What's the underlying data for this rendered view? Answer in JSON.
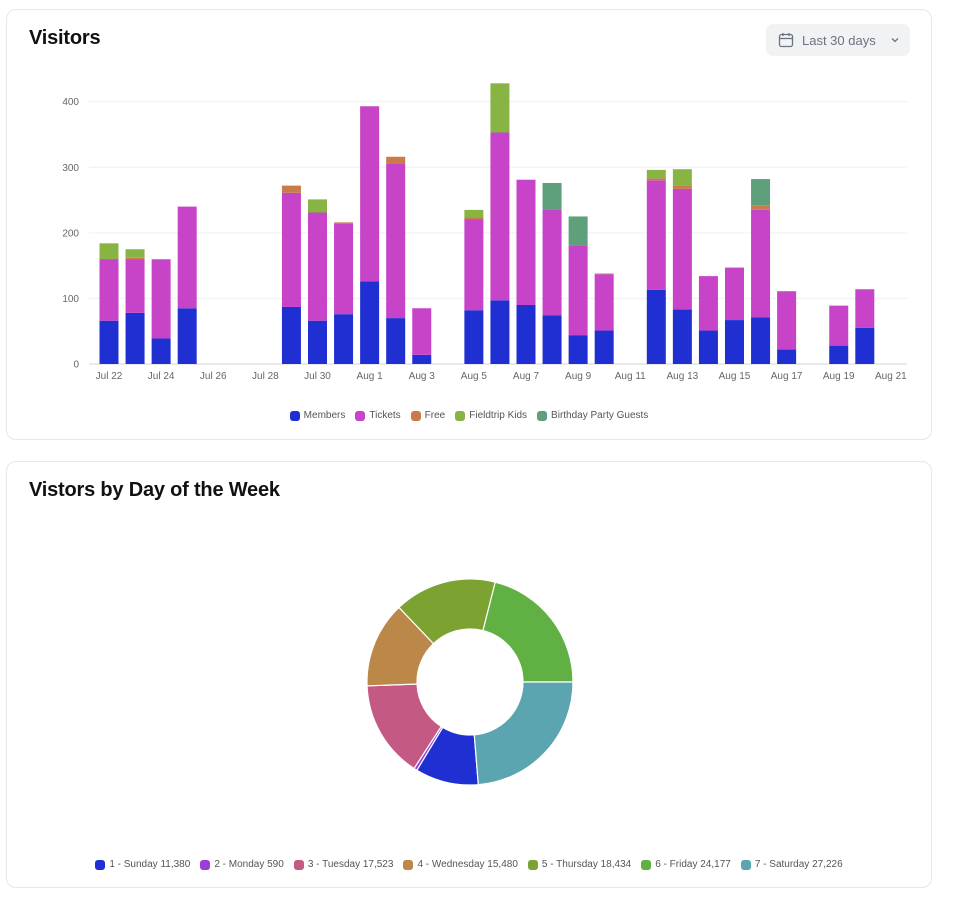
{
  "visitors_card": {
    "title": "Visitors",
    "range_label": "Last 30 days"
  },
  "dow_card": {
    "title": "Vistors by Day of the Week"
  },
  "colors": {
    "members": "#1f2fd1",
    "tickets": "#c743c8",
    "free": "#c97c4a",
    "fieldtrip": "#88b444",
    "birthday": "#5e9f7c"
  },
  "chart_data": [
    {
      "type": "bar",
      "stacked": true,
      "grid": true,
      "legend_position": "bottom",
      "ylim": [
        0,
        430
      ],
      "y_ticks": [
        0,
        100,
        200,
        300,
        400
      ],
      "categories": [
        "Jul 22",
        "Jul 23",
        "Jul 24",
        "Jul 25",
        "Jul 26",
        "Jul 27",
        "Jul 28",
        "Jul 29",
        "Jul 30",
        "Jul 31",
        "Aug 1",
        "Aug 2",
        "Aug 3",
        "Aug 4",
        "Aug 5",
        "Aug 6",
        "Aug 7",
        "Aug 8",
        "Aug 9",
        "Aug 10",
        "Aug 11",
        "Aug 12",
        "Aug 13",
        "Aug 14",
        "Aug 15",
        "Aug 16",
        "Aug 17",
        "Aug 18",
        "Aug 19",
        "Aug 20",
        "Aug 21"
      ],
      "x_tick_labels": [
        "Jul 22",
        "",
        "Jul 24",
        "",
        "Jul 26",
        "",
        "Jul 28",
        "",
        "Jul 30",
        "",
        "Aug 1",
        "",
        "Aug 3",
        "",
        "Aug 5",
        "",
        "Aug 7",
        "",
        "Aug 9",
        "",
        "Aug 11",
        "",
        "Aug 13",
        "",
        "Aug 15",
        "",
        "Aug 17",
        "",
        "Aug 19",
        "",
        "Aug 21"
      ],
      "series": [
        {
          "name": "Members",
          "color": "#1f2fd1",
          "values": [
            66,
            78,
            39,
            85,
            0,
            0,
            0,
            87,
            66,
            76,
            126,
            70,
            14,
            0,
            82,
            97,
            90,
            74,
            44,
            51,
            0,
            113,
            83,
            51,
            67,
            71,
            22,
            0,
            28,
            55,
            0
          ]
        },
        {
          "name": "Tickets",
          "color": "#c743c8",
          "values": [
            94,
            82,
            120,
            155,
            0,
            0,
            0,
            174,
            165,
            138,
            267,
            236,
            71,
            0,
            139,
            256,
            191,
            162,
            136,
            86,
            0,
            167,
            184,
            83,
            80,
            164,
            89,
            0,
            61,
            59,
            0
          ]
        },
        {
          "name": "Free",
          "color": "#c97c4a",
          "values": [
            0,
            2,
            1,
            0,
            0,
            0,
            0,
            11,
            0,
            2,
            0,
            10,
            0,
            0,
            3,
            0,
            0,
            0,
            0,
            1,
            0,
            3,
            5,
            0,
            0,
            7,
            0,
            0,
            0,
            0,
            0
          ]
        },
        {
          "name": "Fieldtrip Kids",
          "color": "#88b444",
          "values": [
            24,
            13,
            0,
            0,
            0,
            0,
            0,
            0,
            20,
            0,
            0,
            0,
            0,
            0,
            11,
            75,
            0,
            0,
            0,
            0,
            0,
            13,
            25,
            0,
            0,
            0,
            0,
            0,
            0,
            0,
            0
          ]
        },
        {
          "name": "Birthday Party Guests",
          "color": "#5e9f7c",
          "values": [
            0,
            0,
            0,
            0,
            0,
            0,
            0,
            0,
            0,
            0,
            0,
            0,
            0,
            0,
            0,
            0,
            0,
            40,
            45,
            0,
            0,
            0,
            0,
            0,
            0,
            40,
            0,
            0,
            0,
            0,
            0
          ]
        }
      ]
    },
    {
      "type": "pie",
      "donut": true,
      "legend_position": "bottom",
      "slices": [
        {
          "label": "1 - Sunday",
          "value": 11380,
          "value_label": "11,380",
          "color": "#1f2fd1"
        },
        {
          "label": "2 - Monday",
          "value": 590,
          "value_label": "590",
          "color": "#9b3ddb"
        },
        {
          "label": "3 - Tuesday",
          "value": 17523,
          "value_label": "17,523",
          "color": "#c45a84"
        },
        {
          "label": "4 - Wednesday",
          "value": 15480,
          "value_label": "15,480",
          "color": "#bb884a"
        },
        {
          "label": "5 - Thursday",
          "value": 18434,
          "value_label": "18,434",
          "color": "#7ca232"
        },
        {
          "label": "6 - Friday",
          "value": 24177,
          "value_label": "24,177",
          "color": "#60b044"
        },
        {
          "label": "7 - Saturday",
          "value": 27226,
          "value_label": "27,226",
          "color": "#5aa5b0"
        }
      ]
    }
  ]
}
